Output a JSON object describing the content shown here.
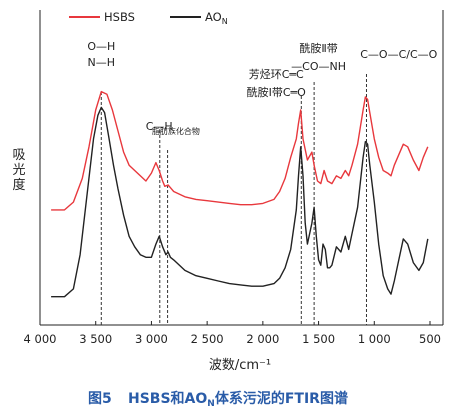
{
  "chart_data": {
    "type": "line",
    "title": "",
    "xlabel": "波数/cm⁻¹",
    "ylabel": "吸光度",
    "xlim": [
      4000,
      400
    ],
    "x_reversed": true,
    "xticks": [
      4000,
      3500,
      3000,
      2500,
      2000,
      1500,
      1000,
      500
    ],
    "xtick_labels": [
      "4 000",
      "3 500",
      "3 000",
      "2 500",
      "2 000",
      "1 500",
      "1 000",
      "500"
    ],
    "legend_placement": "top-left",
    "grid": false,
    "series": [
      {
        "name": "HSBS",
        "color": "#e8383d",
        "x": [
          3900,
          3780,
          3700,
          3620,
          3560,
          3500,
          3450,
          3400,
          3350,
          3300,
          3250,
          3200,
          3150,
          3100,
          3050,
          3000,
          2960,
          2930,
          2900,
          2880,
          2850,
          2820,
          2800,
          2700,
          2600,
          2500,
          2400,
          2300,
          2200,
          2100,
          2000,
          1900,
          1850,
          1800,
          1750,
          1700,
          1680,
          1660,
          1640,
          1600,
          1560,
          1540,
          1510,
          1480,
          1450,
          1420,
          1380,
          1340,
          1300,
          1260,
          1230,
          1200,
          1150,
          1100,
          1080,
          1060,
          1040,
          1000,
          960,
          920,
          880,
          850,
          820,
          780,
          740,
          700,
          650,
          600,
          560,
          520
        ],
        "values": [
          0.35,
          0.35,
          0.38,
          0.47,
          0.59,
          0.73,
          0.8,
          0.79,
          0.73,
          0.65,
          0.57,
          0.52,
          0.5,
          0.48,
          0.46,
          0.49,
          0.53,
          0.5,
          0.46,
          0.44,
          0.445,
          0.43,
          0.42,
          0.4,
          0.39,
          0.385,
          0.38,
          0.375,
          0.37,
          0.37,
          0.375,
          0.39,
          0.42,
          0.47,
          0.55,
          0.62,
          0.68,
          0.73,
          0.62,
          0.54,
          0.57,
          0.52,
          0.46,
          0.45,
          0.5,
          0.46,
          0.45,
          0.48,
          0.47,
          0.5,
          0.48,
          0.52,
          0.6,
          0.73,
          0.78,
          0.77,
          0.72,
          0.62,
          0.55,
          0.5,
          0.49,
          0.48,
          0.52,
          0.56,
          0.6,
          0.59,
          0.54,
          0.5,
          0.55,
          0.59
        ]
      },
      {
        "name": "AON",
        "color": "#222222",
        "x": [
          3900,
          3780,
          3700,
          3640,
          3580,
          3520,
          3480,
          3450,
          3420,
          3380,
          3340,
          3300,
          3250,
          3200,
          3150,
          3100,
          3050,
          3000,
          2960,
          2930,
          2900,
          2870,
          2850,
          2830,
          2800,
          2700,
          2600,
          2500,
          2400,
          2300,
          2200,
          2100,
          2000,
          1900,
          1850,
          1800,
          1750,
          1700,
          1680,
          1660,
          1640,
          1620,
          1600,
          1560,
          1540,
          1520,
          1500,
          1480,
          1460,
          1440,
          1420,
          1400,
          1380,
          1340,
          1300,
          1260,
          1230,
          1200,
          1150,
          1100,
          1080,
          1060,
          1040,
          1000,
          960,
          920,
          880,
          850,
          820,
          780,
          740,
          700,
          650,
          600,
          560,
          520
        ],
        "values": [
          0.02,
          0.02,
          0.05,
          0.18,
          0.4,
          0.62,
          0.71,
          0.74,
          0.72,
          0.62,
          0.52,
          0.43,
          0.33,
          0.25,
          0.21,
          0.18,
          0.17,
          0.17,
          0.22,
          0.25,
          0.21,
          0.18,
          0.19,
          0.17,
          0.16,
          0.12,
          0.1,
          0.09,
          0.08,
          0.07,
          0.065,
          0.06,
          0.06,
          0.07,
          0.09,
          0.13,
          0.2,
          0.35,
          0.48,
          0.59,
          0.48,
          0.3,
          0.22,
          0.3,
          0.36,
          0.25,
          0.16,
          0.14,
          0.22,
          0.2,
          0.13,
          0.13,
          0.14,
          0.21,
          0.19,
          0.25,
          0.2,
          0.26,
          0.36,
          0.55,
          0.61,
          0.6,
          0.52,
          0.38,
          0.22,
          0.1,
          0.05,
          0.03,
          0.08,
          0.16,
          0.24,
          0.22,
          0.15,
          0.12,
          0.15,
          0.24
        ]
      }
    ],
    "reference_lines_x": [
      3450,
      2925,
      2855,
      1655,
      1540,
      1070
    ],
    "annotations": [
      {
        "text": "O—H",
        "x": 3450
      },
      {
        "text": "N—H",
        "x": 3450
      },
      {
        "text": "C—H",
        "x": 2930
      },
      {
        "text": "脂肪族化合物",
        "x": 2780
      },
      {
        "text": "酰胺Ⅱ带",
        "x": 1500
      },
      {
        "text": "—CO—NH",
        "x": 1500
      },
      {
        "text": "芳烃环C═C",
        "x": 1880
      },
      {
        "text": "酰胺Ⅰ带C═O",
        "x": 1880
      },
      {
        "text": "C—O—C/C—O",
        "x": 780
      }
    ]
  },
  "caption": {
    "figure_label": "图5",
    "text": "HSBS和AON体系污泥的FTIR图谱"
  }
}
